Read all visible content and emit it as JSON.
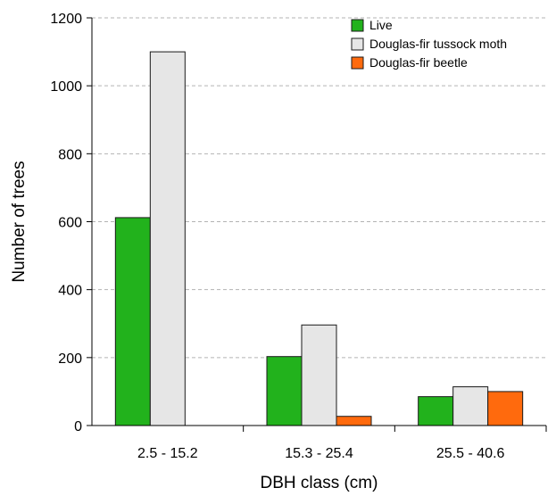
{
  "chart_data": {
    "type": "bar",
    "title": "",
    "xlabel": "DBH class (cm)",
    "ylabel": "Number of trees",
    "categories": [
      "2.5 - 15.2",
      "15.3 - 25.4",
      "25.5 - 40.6"
    ],
    "series": [
      {
        "name": "Live",
        "values": [
          612,
          203,
          85
        ],
        "color": "#22b21c"
      },
      {
        "name": "Douglas-fir tussock moth",
        "values": [
          1100,
          296,
          114
        ],
        "color": "#e6e6e6"
      },
      {
        "name": "Douglas-fir beetle",
        "values": [
          0,
          27,
          100
        ],
        "color": "#ff6a0d"
      }
    ],
    "ylim": [
      0,
      1200
    ],
    "yticks": [
      0,
      200,
      400,
      600,
      800,
      1000,
      1200
    ],
    "grid": "horizontal dashed",
    "legend_position": "top-right"
  }
}
